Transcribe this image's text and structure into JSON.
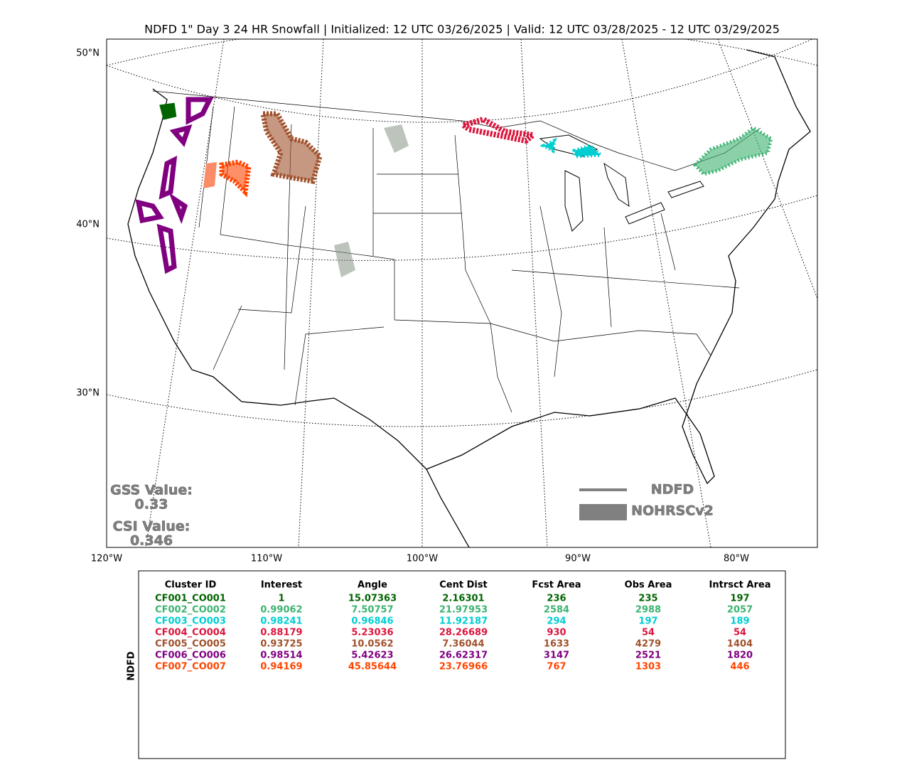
{
  "title": "NDFD 1\" Day 3 24 HR Snowfall | Initialized: 12 UTC 03/26/2025 | Valid: 12 UTC 03/28/2025 - 12 UTC 03/29/2025",
  "map": {
    "lat_labels": [
      "50°N",
      "40°N",
      "30°N"
    ],
    "lon_labels": [
      "120°W",
      "110°W",
      "100°W",
      "90°W",
      "80°W"
    ]
  },
  "stats": {
    "gss_label": "GSS Value:",
    "gss": "0.33",
    "csi_label": "CSI Value:",
    "csi": "0.346"
  },
  "legend": {
    "items": [
      "NDFD",
      "NOHRSCv2"
    ],
    "color": "#808080"
  },
  "table": {
    "side_label": "NDFD",
    "headers": [
      "Cluster ID",
      "Interest",
      "Angle",
      "Cent Dist",
      "Fcst Area",
      "Obs Area",
      "Intrsct Area"
    ],
    "row_colors": [
      "#006400",
      "#3cb371",
      "#00ced1",
      "#dc143c",
      "#a0522d",
      "#800080",
      "#ff4500"
    ],
    "rows": [
      [
        "CF001_CO001",
        "1",
        "15.07363",
        "2.16301",
        "236",
        "235",
        "197"
      ],
      [
        "CF002_CO002",
        "0.99062",
        "7.50757",
        "21.97953",
        "2584",
        "2988",
        "2057"
      ],
      [
        "CF003_CO003",
        "0.98241",
        "0.96846",
        "11.92187",
        "294",
        "197",
        "189"
      ],
      [
        "CF004_CO004",
        "0.88179",
        "5.23036",
        "28.26689",
        "930",
        "54",
        "54"
      ],
      [
        "CF005_CO005",
        "0.93725",
        "10.0562",
        "7.36044",
        "1633",
        "4279",
        "1404"
      ],
      [
        "CF006_CO006",
        "0.98514",
        "5.42623",
        "26.62317",
        "3147",
        "2521",
        "1820"
      ],
      [
        "CF007_CO007",
        "0.94169",
        "45.85644",
        "23.76966",
        "767",
        "1303",
        "446"
      ]
    ]
  }
}
